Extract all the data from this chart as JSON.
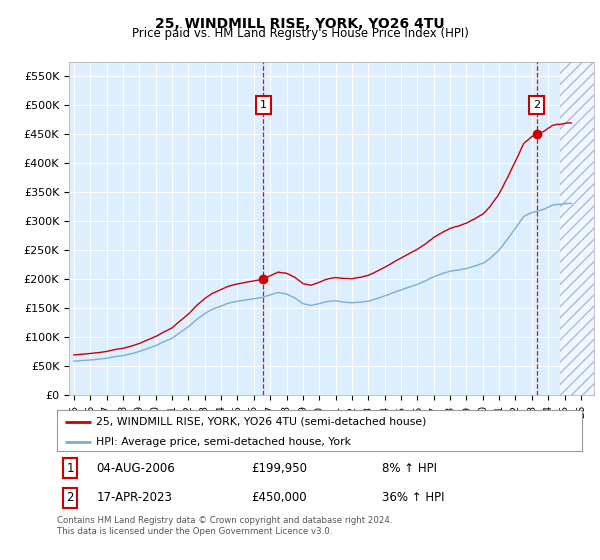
{
  "title": "25, WINDMILL RISE, YORK, YO26 4TU",
  "subtitle": "Price paid vs. HM Land Registry's House Price Index (HPI)",
  "legend_line1": "25, WINDMILL RISE, YORK, YO26 4TU (semi-detached house)",
  "legend_line2": "HPI: Average price, semi-detached house, York",
  "footnote": "Contains HM Land Registry data © Crown copyright and database right 2024.\nThis data is licensed under the Open Government Licence v3.0.",
  "annotation1": {
    "label": "1",
    "date": "04-AUG-2006",
    "price": "£199,950",
    "pct": "8% ↑ HPI"
  },
  "annotation2": {
    "label": "2",
    "date": "17-APR-2023",
    "price": "£450,000",
    "pct": "36% ↑ HPI"
  },
  "hpi_color": "#7aaed4",
  "price_color": "#cc0000",
  "background_color": "#ddeeff",
  "hatch_color": "#aabbcc",
  "ylim": [
    0,
    575000
  ],
  "yticks": [
    0,
    50000,
    100000,
    150000,
    200000,
    250000,
    300000,
    350000,
    400000,
    450000,
    500000,
    550000
  ],
  "ytick_labels": [
    "£0",
    "£50K",
    "£100K",
    "£150K",
    "£200K",
    "£250K",
    "£300K",
    "£350K",
    "£400K",
    "£450K",
    "£500K",
    "£550K"
  ],
  "sale_year1": 2006.58,
  "sale_price1": 199950,
  "sale_year2": 2023.29,
  "sale_price2": 450000,
  "xmin": 1994.7,
  "xmax": 2026.8,
  "xtick_years": [
    1995,
    1996,
    1997,
    1998,
    1999,
    2000,
    2001,
    2002,
    2003,
    2004,
    2005,
    2006,
    2007,
    2008,
    2009,
    2010,
    2011,
    2012,
    2013,
    2014,
    2015,
    2016,
    2017,
    2018,
    2019,
    2020,
    2021,
    2022,
    2023,
    2024,
    2025,
    2026
  ],
  "hatch_start": 2024.7
}
